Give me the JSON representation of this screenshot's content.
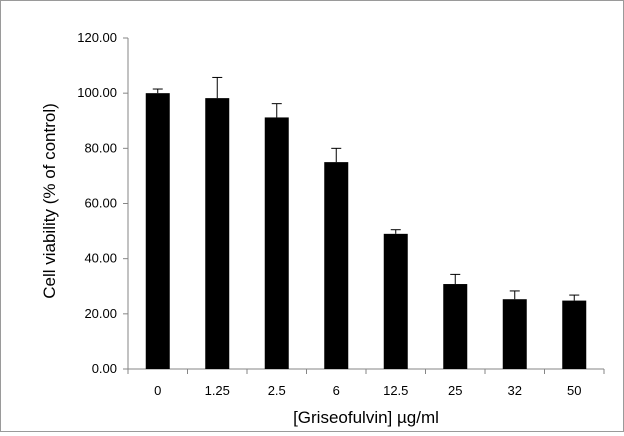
{
  "chart_data": {
    "type": "bar",
    "title": "",
    "xlabel": "[Griseofulvin] µg/ml",
    "ylabel": "Cell viability (% of control)",
    "categories": [
      "0",
      "1.25",
      "2.5",
      "6",
      "12.5",
      "25",
      "32",
      "50"
    ],
    "values": [
      100.0,
      98.2,
      91.2,
      75.0,
      49.0,
      30.8,
      25.3,
      24.8
    ],
    "errors": [
      1.5,
      7.5,
      5.0,
      5.0,
      1.5,
      3.5,
      3.0,
      2.0
    ],
    "ylim": [
      0,
      120
    ],
    "yticks": [
      0,
      20,
      40,
      60,
      80,
      100,
      120
    ],
    "ytick_labels": [
      "0.00",
      "20.00",
      "40.00",
      "60.00",
      "80.00",
      "100.00",
      "120.00"
    ],
    "grid": false,
    "legend": "none",
    "bar_color": "#000000",
    "axis_color": "#868686"
  }
}
